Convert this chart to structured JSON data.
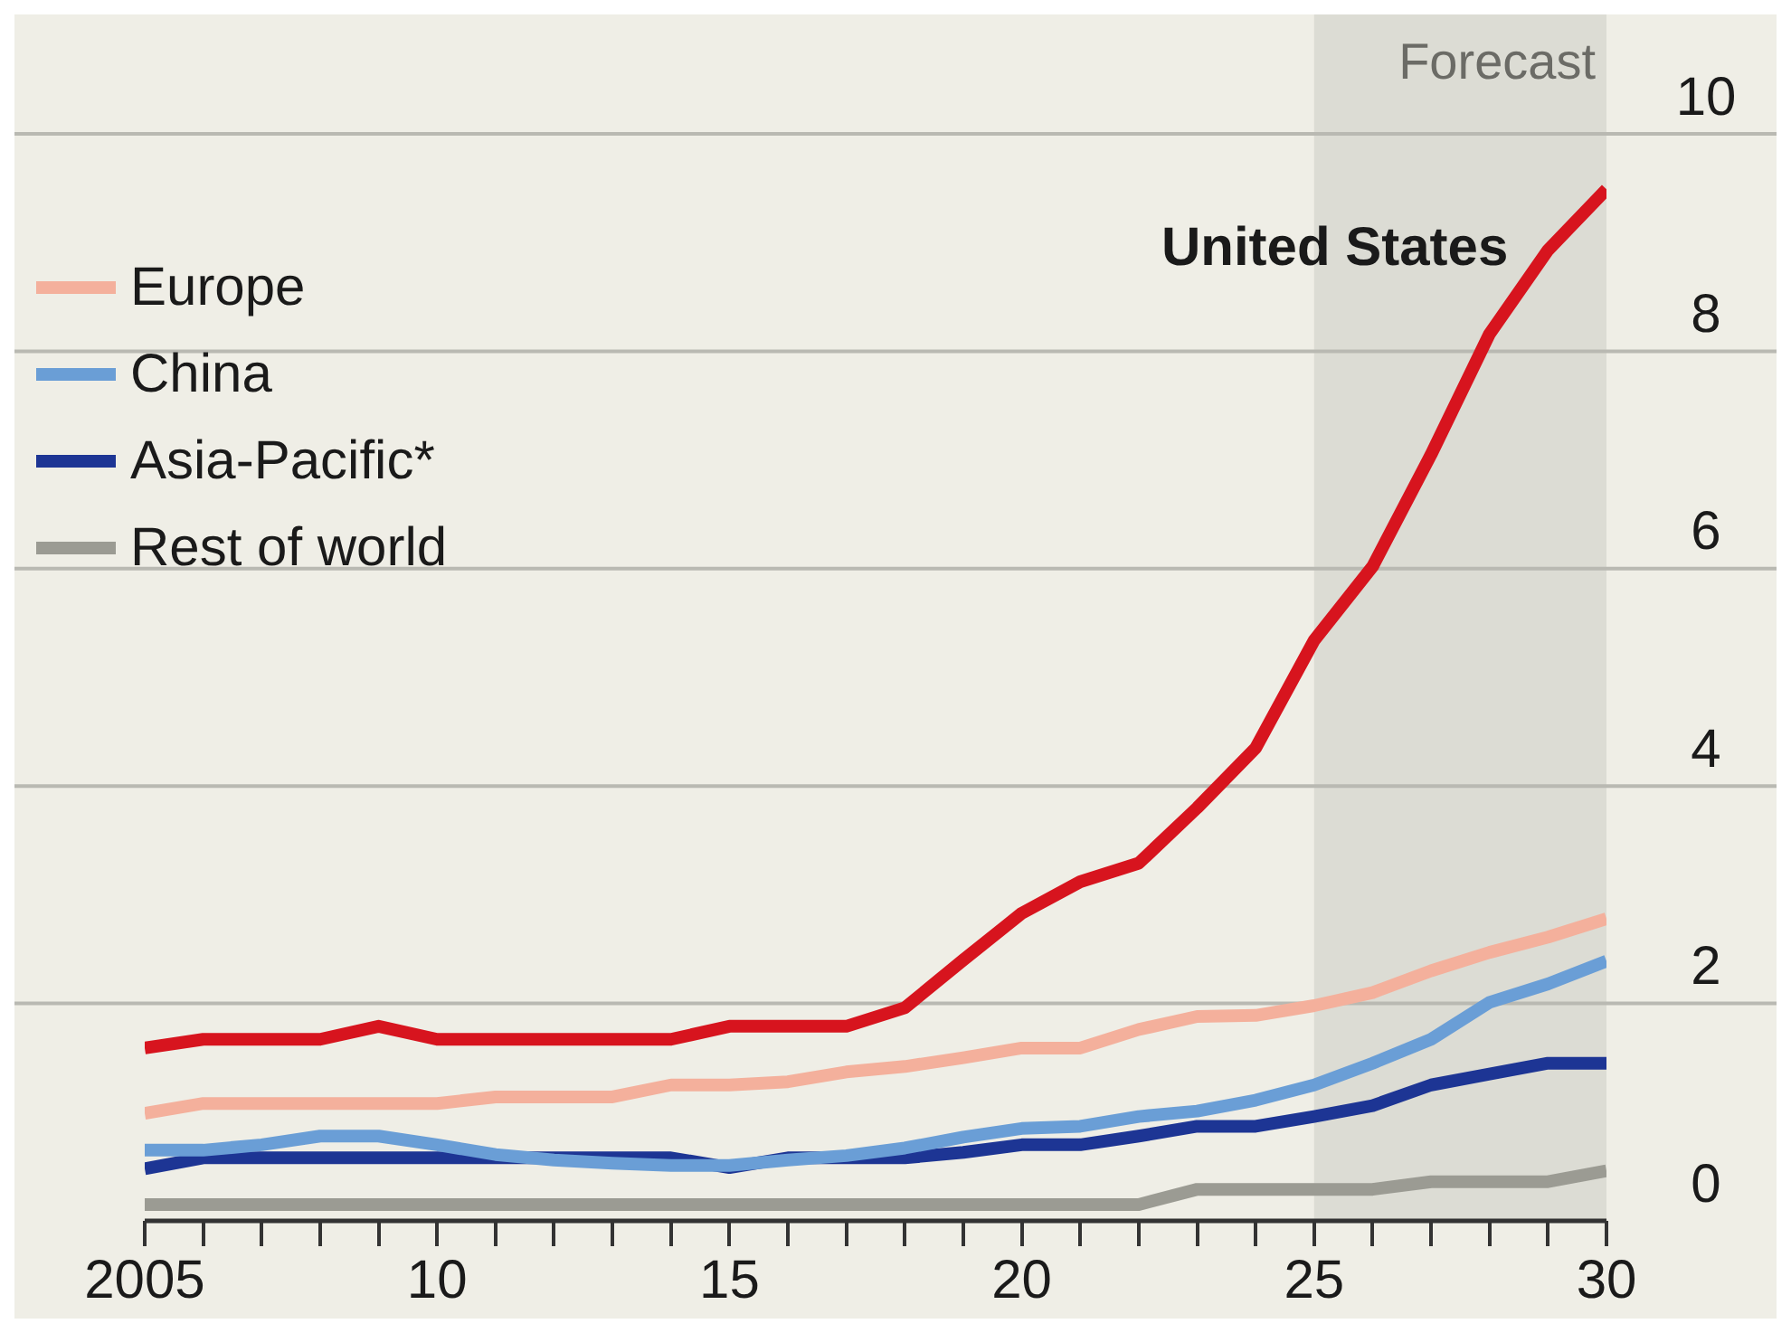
{
  "chart_data": {
    "type": "line",
    "x": [
      2005,
      2006,
      2007,
      2008,
      2009,
      2010,
      2011,
      2012,
      2013,
      2014,
      2015,
      2016,
      2017,
      2018,
      2019,
      2020,
      2021,
      2022,
      2023,
      2024,
      2025,
      2026,
      2027,
      2028,
      2029,
      2030
    ],
    "series": [
      {
        "name": "United States",
        "color": "#d7141e",
        "values": [
          1.59,
          1.67,
          1.67,
          1.67,
          1.79,
          1.67,
          1.67,
          1.67,
          1.67,
          1.67,
          1.79,
          1.79,
          1.79,
          1.96,
          2.4,
          2.83,
          3.12,
          3.29,
          3.8,
          4.35,
          5.34,
          6.02,
          7.05,
          8.16,
          8.93,
          9.49
        ]
      },
      {
        "name": "Europe",
        "color": "#f4b09c",
        "values": [
          0.99,
          1.08,
          1.08,
          1.08,
          1.08,
          1.08,
          1.14,
          1.14,
          1.14,
          1.25,
          1.25,
          1.28,
          1.37,
          1.42,
          1.5,
          1.59,
          1.59,
          1.76,
          1.88,
          1.89,
          1.98,
          2.1,
          2.3,
          2.47,
          2.61,
          2.78
        ]
      },
      {
        "name": "China",
        "color": "#6a9ed6",
        "values": [
          0.65,
          0.65,
          0.7,
          0.78,
          0.78,
          0.7,
          0.61,
          0.56,
          0.53,
          0.51,
          0.51,
          0.56,
          0.6,
          0.67,
          0.77,
          0.85,
          0.87,
          0.96,
          1.01,
          1.11,
          1.25,
          1.45,
          1.67,
          2.01,
          2.18,
          2.39
        ]
      },
      {
        "name": "Asia-Pacific*",
        "color": "#1d3594",
        "values": [
          0.48,
          0.58,
          0.58,
          0.58,
          0.58,
          0.58,
          0.58,
          0.58,
          0.58,
          0.58,
          0.49,
          0.58,
          0.58,
          0.58,
          0.63,
          0.7,
          0.7,
          0.78,
          0.87,
          0.87,
          0.96,
          1.06,
          1.25,
          1.35,
          1.45,
          1.45
        ]
      },
      {
        "name": "Rest of world",
        "color": "#9b9b93",
        "values": [
          0.15,
          0.15,
          0.15,
          0.15,
          0.15,
          0.15,
          0.15,
          0.15,
          0.15,
          0.15,
          0.15,
          0.15,
          0.15,
          0.15,
          0.15,
          0.15,
          0.15,
          0.15,
          0.29,
          0.29,
          0.29,
          0.29,
          0.36,
          0.36,
          0.36,
          0.46
        ]
      }
    ],
    "xlim": [
      2005,
      2030
    ],
    "xticks": [
      {
        "value": 2005,
        "label": "2005"
      },
      {
        "value": 2006,
        "label": null
      },
      {
        "value": 2007,
        "label": null
      },
      {
        "value": 2008,
        "label": null
      },
      {
        "value": 2009,
        "label": null
      },
      {
        "value": 2010,
        "label": "10"
      },
      {
        "value": 2011,
        "label": null
      },
      {
        "value": 2012,
        "label": null
      },
      {
        "value": 2013,
        "label": null
      },
      {
        "value": 2014,
        "label": null
      },
      {
        "value": 2015,
        "label": "15"
      },
      {
        "value": 2016,
        "label": null
      },
      {
        "value": 2017,
        "label": null
      },
      {
        "value": 2018,
        "label": null
      },
      {
        "value": 2019,
        "label": null
      },
      {
        "value": 2020,
        "label": "20"
      },
      {
        "value": 2021,
        "label": null
      },
      {
        "value": 2022,
        "label": null
      },
      {
        "value": 2023,
        "label": null
      },
      {
        "value": 2024,
        "label": null
      },
      {
        "value": 2025,
        "label": "25"
      },
      {
        "value": 2026,
        "label": null
      },
      {
        "value": 2027,
        "label": null
      },
      {
        "value": 2028,
        "label": null
      },
      {
        "value": 2029,
        "label": null
      },
      {
        "value": 2030,
        "label": "30"
      }
    ],
    "ylim": [
      0,
      10
    ],
    "yticks": [
      0,
      2,
      4,
      6,
      8,
      10
    ],
    "bands": [
      {
        "axis": "x",
        "from": 2025,
        "to": 2030,
        "label": "Forecast",
        "color": "#dcdcd4"
      }
    ],
    "grid": "y",
    "legend": "top left",
    "marker": "none",
    "line_style": "solid"
  }
}
